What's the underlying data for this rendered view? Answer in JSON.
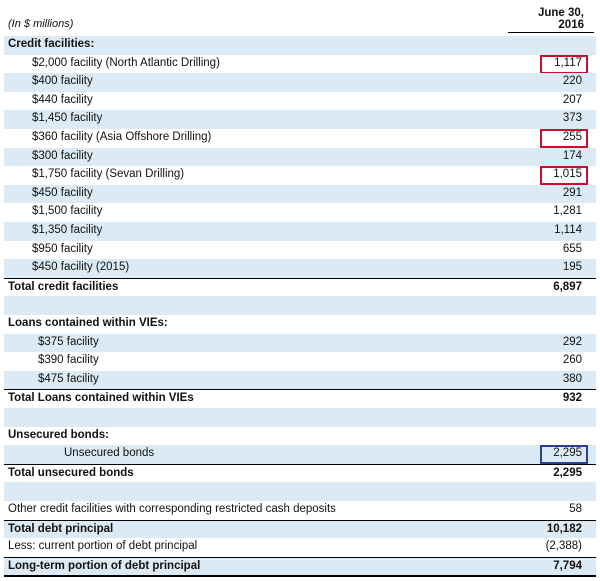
{
  "header": {
    "unit_label": "(In $ millions)",
    "column_line1": "June 30,",
    "column_line2": "2016"
  },
  "colors": {
    "row_blue": "#dbeaf5",
    "highlight_red": "#c8102e",
    "highlight_blue": "#2a3f9d"
  },
  "sections": {
    "credit": {
      "heading": "Credit facilities:",
      "items": [
        {
          "label": "$2,000 facility (North Atlantic Drilling)",
          "value": "1,117"
        },
        {
          "label": "$400 facility",
          "value": "220"
        },
        {
          "label": "$440 facility",
          "value": "207"
        },
        {
          "label": "$1,450 facility",
          "value": "373"
        },
        {
          "label": "$360 facility (Asia Offshore Drilling)",
          "value": "255"
        },
        {
          "label": "$300 facility",
          "value": "174"
        },
        {
          "label": "$1,750 facility (Sevan Drilling)",
          "value": "1,015"
        },
        {
          "label": "$450 facility",
          "value": "291"
        },
        {
          "label": "$1,500 facility",
          "value": "1,281"
        },
        {
          "label": "$1,350 facility",
          "value": "1,114"
        },
        {
          "label": "$950 facility",
          "value": "655"
        },
        {
          "label": "$450 facility (2015)",
          "value": "195"
        }
      ],
      "total_label": "Total credit facilities",
      "total_value": "6,897"
    },
    "vies": {
      "heading": "Loans contained within VIEs:",
      "items": [
        {
          "label": "$375 facility",
          "value": "292"
        },
        {
          "label": "$390 facility",
          "value": "260"
        },
        {
          "label": "$475 facility",
          "value": "380"
        }
      ],
      "total_label": "Total Loans contained within VIEs",
      "total_value": "932"
    },
    "bonds": {
      "heading": "Unsecured bonds:",
      "items": [
        {
          "label": "Unsecured bonds",
          "value": "2,295"
        }
      ],
      "total_label": "Total unsecured bonds",
      "total_value": "2,295"
    },
    "other": {
      "label": "Other credit facilities with corresponding restricted cash deposits",
      "value": "58"
    },
    "summary": {
      "total_debt_label": "Total debt principal",
      "total_debt_value": "10,182",
      "current_label": "Less: current portion of debt principal",
      "current_value": "(2,388)",
      "longterm_label": "Long-term portion of debt principal",
      "longterm_value": "7,794"
    }
  }
}
